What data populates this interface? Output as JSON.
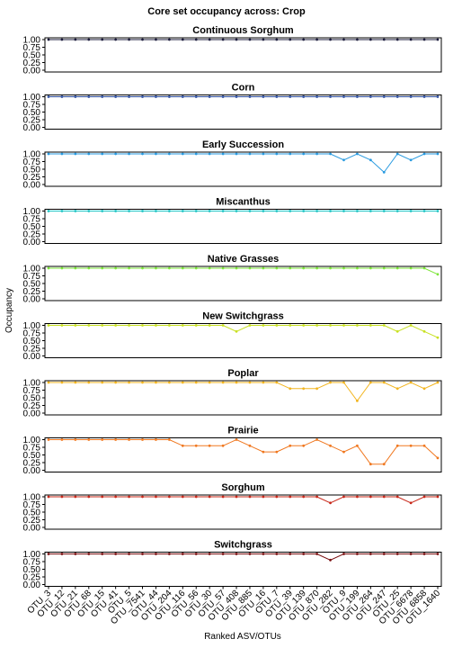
{
  "title": "Core set occupancy across: Crop",
  "x_label": "Ranked ASV/OTUs",
  "y_label": "Occupancy",
  "categories": [
    "OTU_3",
    "OTU_12",
    "OTU_21",
    "OTU_68",
    "OTU_15",
    "OTU_41",
    "OTU_5",
    "OTU_7541",
    "OTU_44",
    "OTU_204",
    "OTU_116",
    "OTU_56",
    "OTU_30",
    "OTU_57",
    "OTU_408",
    "OTU_885",
    "OTU_16",
    "OTU_7",
    "OTU_39",
    "OTU_139",
    "OTU_870",
    "OTU_282",
    "OTU_9",
    "OTU_199",
    "OTU_264",
    "OTU_247",
    "OTU_25",
    "OTU_6678",
    "OTU_6858",
    "OTU_1640"
  ],
  "ylim": [
    0,
    1
  ],
  "yticks": [
    {
      "value": 0,
      "label": "0.00"
    },
    0.25,
    {
      "value": 0.5,
      "label": "0.50"
    },
    0.75,
    {
      "value": 1,
      "label": "1.00"
    }
  ],
  "chart_data": [
    {
      "type": "line",
      "title": "Continuous Sorghum",
      "color": "#1c1c3c",
      "values": [
        1,
        1,
        1,
        1,
        1,
        1,
        1,
        1,
        1,
        1,
        1,
        1,
        1,
        1,
        1,
        1,
        1,
        1,
        1,
        1,
        1,
        1,
        1,
        1,
        1,
        1,
        1,
        1,
        1,
        1
      ]
    },
    {
      "type": "line",
      "title": "Corn",
      "color": "#2b4c9e",
      "values": [
        1,
        1,
        1,
        1,
        1,
        1,
        1,
        1,
        1,
        1,
        1,
        1,
        1,
        1,
        1,
        1,
        1,
        1,
        1,
        1,
        1,
        1,
        1,
        1,
        1,
        1,
        1,
        1,
        1,
        1
      ]
    },
    {
      "type": "line",
      "title": "Early Succession",
      "color": "#2a9be0",
      "values": [
        1,
        1,
        1,
        1,
        1,
        1,
        1,
        1,
        1,
        1,
        1,
        1,
        1,
        1,
        1,
        1,
        1,
        1,
        1,
        1,
        1,
        1,
        0.8,
        1,
        0.8,
        0.4,
        1,
        0.8,
        1,
        1
      ]
    },
    {
      "type": "line",
      "title": "Miscanthus",
      "color": "#1fc2c2",
      "values": [
        1,
        1,
        1,
        1,
        1,
        1,
        1,
        1,
        1,
        1,
        1,
        1,
        1,
        1,
        1,
        1,
        1,
        1,
        1,
        1,
        1,
        1,
        1,
        1,
        1,
        1,
        1,
        1,
        1,
        1
      ]
    },
    {
      "type": "line",
      "title": "Native Grasses",
      "color": "#7ee53a",
      "values": [
        1,
        1,
        1,
        1,
        1,
        1,
        1,
        1,
        1,
        1,
        1,
        1,
        1,
        1,
        1,
        1,
        1,
        1,
        1,
        1,
        1,
        1,
        1,
        1,
        1,
        1,
        1,
        1,
        1,
        0.8
      ]
    },
    {
      "type": "line",
      "title": "New Switchgrass",
      "color": "#c8e020",
      "values": [
        1,
        1,
        1,
        1,
        1,
        1,
        1,
        1,
        1,
        1,
        1,
        1,
        1,
        1,
        0.8,
        1,
        1,
        1,
        1,
        1,
        1,
        1,
        1,
        1,
        1,
        1,
        0.8,
        1,
        0.8,
        0.6
      ]
    },
    {
      "type": "line",
      "title": "Poplar",
      "color": "#f2b520",
      "values": [
        1,
        1,
        1,
        1,
        1,
        1,
        1,
        1,
        1,
        1,
        1,
        1,
        1,
        1,
        1,
        1,
        1,
        1,
        0.8,
        0.8,
        0.8,
        1,
        1,
        0.4,
        1,
        1,
        0.8,
        1,
        0.8,
        1
      ]
    },
    {
      "type": "line",
      "title": "Prairie",
      "color": "#f07820",
      "values": [
        1,
        1,
        1,
        1,
        1,
        1,
        1,
        1,
        1,
        1,
        0.8,
        0.8,
        0.8,
        0.8,
        1,
        0.8,
        0.6,
        0.6,
        0.8,
        0.8,
        1,
        0.8,
        0.6,
        0.8,
        0.2,
        0.2,
        0.8,
        0.8,
        0.8,
        0.4
      ]
    },
    {
      "type": "line",
      "title": "Sorghum",
      "color": "#c8281a",
      "values": [
        1,
        1,
        1,
        1,
        1,
        1,
        1,
        1,
        1,
        1,
        1,
        1,
        1,
        1,
        1,
        1,
        1,
        1,
        1,
        1,
        1,
        0.8,
        1,
        1,
        1,
        1,
        1,
        0.8,
        1,
        1
      ]
    },
    {
      "type": "line",
      "title": "Switchgrass",
      "color": "#7a0f10",
      "values": [
        1,
        1,
        1,
        1,
        1,
        1,
        1,
        1,
        1,
        1,
        1,
        1,
        1,
        1,
        1,
        1,
        1,
        1,
        1,
        1,
        1,
        0.8,
        1,
        1,
        1,
        1,
        1,
        1,
        1,
        1
      ]
    }
  ]
}
